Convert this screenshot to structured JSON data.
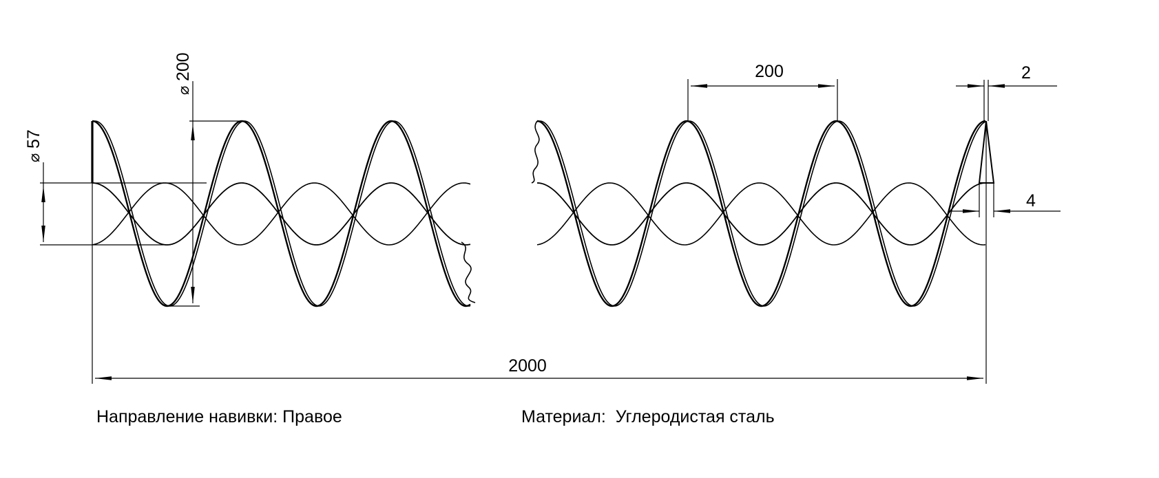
{
  "dimensions": {
    "outer_diameter": "200",
    "shaft_diameter": "57",
    "diameter_symbol": "⌀",
    "pitch": "200",
    "thickness_outer": "2",
    "thickness_inner": "4",
    "total_length": "2000"
  },
  "notes": {
    "winding_label": "Направление навивки:",
    "winding_value": "Правое",
    "material_label": "Материал:",
    "material_value": "Углеродистая сталь"
  },
  "colors": {
    "line": "#000000",
    "background": "#ffffff"
  }
}
